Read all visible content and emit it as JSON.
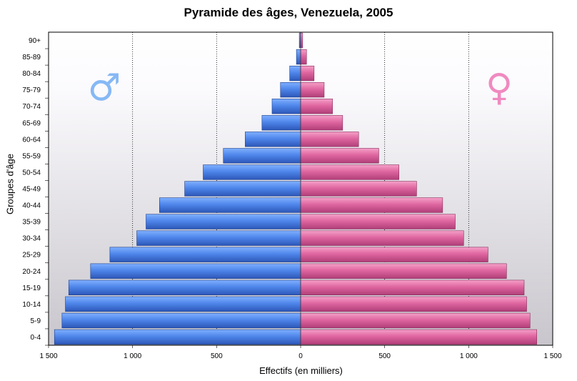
{
  "chart_data": {
    "type": "bar",
    "orientation": "horizontal-population-pyramid",
    "title": "Pyramide des âges, Venezuela, 2005",
    "xlabel": "Effectifs (en milliers)",
    "ylabel": "Groupes d'âge",
    "xlim": [
      -1500,
      1500
    ],
    "x_ticks": [
      -1500,
      -1000,
      -500,
      0,
      500,
      1000,
      1500
    ],
    "x_tick_labels": [
      "1 500",
      "1 000",
      "500",
      "0",
      "500",
      "1 000",
      "1 500"
    ],
    "categories": [
      "0-4",
      "5-9",
      "10-14",
      "15-19",
      "20-24",
      "25-29",
      "30-34",
      "35-39",
      "40-44",
      "45-49",
      "50-54",
      "55-59",
      "60-64",
      "65-69",
      "70-74",
      "75-79",
      "80-84",
      "85-89",
      "90+"
    ],
    "series": [
      {
        "name": "Hommes",
        "symbol": "♂",
        "color": "#5a8fe6",
        "values": [
          1465,
          1420,
          1400,
          1380,
          1250,
          1135,
          975,
          920,
          840,
          690,
          580,
          460,
          330,
          230,
          170,
          120,
          65,
          25,
          8
        ]
      },
      {
        "name": "Femmes",
        "symbol": "♀",
        "color": "#e06aa2",
        "values": [
          1405,
          1365,
          1345,
          1330,
          1225,
          1115,
          970,
          920,
          845,
          690,
          585,
          465,
          345,
          250,
          190,
          140,
          80,
          35,
          12
        ]
      }
    ],
    "grid": "vertical-dotted",
    "legend": "symbols-top"
  }
}
